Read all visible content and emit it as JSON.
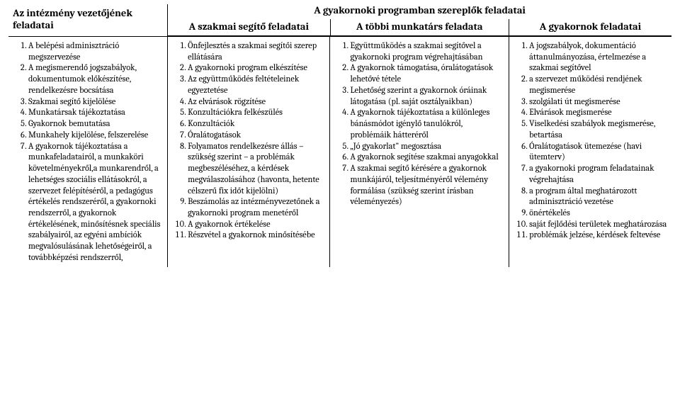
{
  "header": {
    "left_title": "Az intézmény vezetőjének feladatai",
    "main_title": "A gyakornoki programban szereplők feladatai",
    "col2_title": "A szakmai segítő feladatai",
    "col3_title": "A többi munkatárs feladata",
    "col4_title": "A gyakornok feladatai"
  },
  "columns": {
    "c1": [
      "A belépési adminisztráció megszervezése",
      "A megismerendő jogszabályok, dokumentumok előkészítése, rendelkezésre bocsátása",
      "Szakmai segítő kijelölése",
      "Munkatársak tájékoztatása",
      "Gyakornok bemutatása",
      "Munkahely kijelölése, felszerelése",
      "A gyakornok tájékoztatása a munkafeladatairól, a munkaköri követelményekről,a munkarendről, a lehetséges szociális ellátásokról, a szervezet felépítéséről, a pedagógus értékelés rendszeréről, a gyakornoki rendszerről, a gyakornok értékelésének, minősítésnek speciális szabályairól, az egyéni ambíciók megvalósulásának lehetőségeiről, a továbbképzési rendszerről,"
    ],
    "c2": [
      "Önfejlesztés a szakmai segítői szerep ellátására",
      "A gyakornoki program elkészítése",
      "Az együttműködés feltételeinek egyeztetése",
      "Az elvárások rögzítése",
      "Konzultációkra felkészülés",
      "Konzultációk",
      "Óralátogatások",
      "Folyamatos rendelkezésre állás – szükség szerint – a problémák megbeszéléséhez, a kérdések megválaszolásához (havonta, hetente célszerű fix időt kijelölni)",
      "Beszámolás az intézményvezetőnek a gyakornoki program menetéről",
      "A gyakornok értékelése",
      "Részvétel a gyakornok minősítésébe"
    ],
    "c3": [
      "Együttműködés a szakmai segítővel a gyakornoki program végrehajtásában",
      "A gyakornok támogatása, óralátogatások lehetővé tétele",
      "Lehetőség szerint a gyakornok óráinak látogatása (pl. saját osztályaikban)",
      "A gyakornok tájékoztatása a különleges bánásmódot igénylő tanulókról, problémáik hátteréről",
      "„Jó gyakorlat\" megosztása",
      "A gyakornok segítése szakmai anyagokkal",
      "A szakmai segítő kérésére a gyakornok munkájáról, teljesítményéről vélemény formálása (szükség szerint írásban véleményezés)"
    ],
    "c4": [
      "A jogszabályok, dokumentáció áttanulmányozása, értelmezése a szakmai segítővel",
      "a szervezet működési rendjének megismerése",
      "szolgálati út megismerése",
      "Elvárások megismerése",
      "Viselkedési szabályok megismerése, betartása",
      "Óralátogatások ütemezése (havi ütemterv)",
      "a gyakornoki program feladatainak végrehajtása",
      "a program által meghatározott adminisztráció vezetése",
      "önértékelés",
      "saját fejlődési területek meghatározása",
      "problémák jelzése, kérdések feltevése"
    ]
  }
}
